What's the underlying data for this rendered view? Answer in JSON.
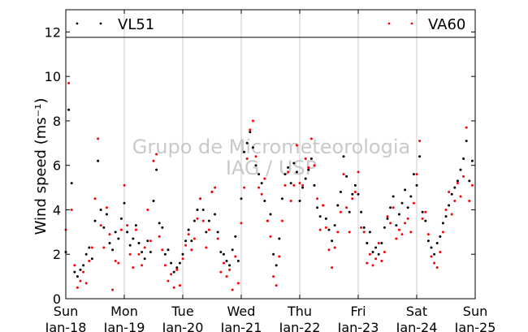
{
  "chart_data": {
    "type": "scatter",
    "ylabel": "Wind speed (ms⁻¹)",
    "ylim": [
      0,
      13
    ],
    "yticks": [
      "0",
      "2",
      "4",
      "6",
      "8",
      "10",
      "12"
    ],
    "xlim": [
      0,
      7
    ],
    "xticks": [
      {
        "day": "Sun",
        "date": "Jan-18"
      },
      {
        "day": "Mon",
        "date": "Jan-19"
      },
      {
        "day": "Tue",
        "date": "Jan-20"
      },
      {
        "day": "Wed",
        "date": "Jan-21"
      },
      {
        "day": "Thu",
        "date": "Jan-22"
      },
      {
        "day": "Fri",
        "date": "Jan-23"
      },
      {
        "day": "Sat",
        "date": "Jan-24"
      },
      {
        "day": "Sun",
        "date": "Jan-25"
      }
    ],
    "grid": "vertical",
    "legend_placement": "top",
    "watermark": [
      "Grupo de Micrometeorologia",
      "IAG / USP"
    ],
    "series": [
      {
        "name": "VL51",
        "color": "#000000",
        "marker": "dot",
        "values": [
          [
            0.0,
            2.1
          ],
          [
            0.05,
            8.5
          ],
          [
            0.1,
            5.2
          ],
          [
            0.15,
            1.2
          ],
          [
            0.2,
            1.0
          ],
          [
            0.25,
            1.3
          ],
          [
            0.3,
            1.5
          ],
          [
            0.35,
            2.0
          ],
          [
            0.4,
            2.3
          ],
          [
            0.45,
            1.8
          ],
          [
            0.5,
            3.5
          ],
          [
            0.55,
            6.2
          ],
          [
            0.6,
            4.0
          ],
          [
            0.65,
            3.2
          ],
          [
            0.7,
            3.8
          ],
          [
            0.75,
            2.5
          ],
          [
            0.8,
            2.2
          ],
          [
            0.85,
            3.0
          ],
          [
            0.9,
            2.7
          ],
          [
            0.95,
            3.6
          ],
          [
            1.0,
            4.3
          ],
          [
            1.05,
            3.0
          ],
          [
            1.1,
            2.4
          ],
          [
            1.15,
            2.7
          ],
          [
            1.2,
            3.3
          ],
          [
            1.25,
            2.5
          ],
          [
            1.3,
            2.1
          ],
          [
            1.35,
            1.8
          ],
          [
            1.4,
            2.6
          ],
          [
            1.45,
            2.1
          ],
          [
            1.5,
            4.4
          ],
          [
            1.55,
            5.8
          ],
          [
            1.6,
            3.4
          ],
          [
            1.65,
            3.2
          ],
          [
            1.7,
            2.0
          ],
          [
            1.75,
            2.2
          ],
          [
            1.8,
            1.6
          ],
          [
            1.85,
            1.2
          ],
          [
            1.9,
            1.4
          ],
          [
            1.95,
            1.6
          ],
          [
            2.0,
            2.0
          ],
          [
            2.05,
            2.6
          ],
          [
            2.1,
            3.1
          ],
          [
            2.15,
            2.6
          ],
          [
            2.2,
            3.5
          ],
          [
            2.25,
            4.0
          ],
          [
            2.3,
            4.5
          ],
          [
            2.35,
            4.0
          ],
          [
            2.4,
            3.0
          ],
          [
            2.45,
            3.5
          ],
          [
            2.5,
            4.8
          ],
          [
            2.55,
            3.8
          ],
          [
            2.6,
            3.0
          ],
          [
            2.65,
            2.1
          ],
          [
            2.7,
            2.0
          ],
          [
            2.75,
            1.7
          ],
          [
            2.8,
            1.5
          ],
          [
            2.85,
            2.2
          ],
          [
            2.9,
            2.8
          ],
          [
            2.95,
            1.7
          ],
          [
            3.0,
            4.5
          ],
          [
            3.05,
            6.6
          ],
          [
            3.1,
            7.0
          ],
          [
            3.15,
            7.5
          ],
          [
            3.2,
            6.8
          ],
          [
            3.25,
            6.0
          ],
          [
            3.3,
            5.6
          ],
          [
            3.35,
            5.2
          ],
          [
            3.4,
            4.4
          ],
          [
            3.45,
            3.5
          ],
          [
            3.5,
            3.8
          ],
          [
            3.55,
            2.0
          ],
          [
            3.6,
            1.5
          ],
          [
            3.65,
            2.7
          ],
          [
            3.7,
            4.5
          ],
          [
            3.75,
            5.6
          ],
          [
            3.8,
            5.9
          ],
          [
            3.85,
            5.2
          ],
          [
            3.9,
            6.1
          ],
          [
            3.95,
            5.7
          ],
          [
            4.0,
            4.4
          ],
          [
            4.05,
            5.0
          ],
          [
            4.1,
            5.4
          ],
          [
            4.15,
            5.8
          ],
          [
            4.2,
            6.3
          ],
          [
            4.25,
            5.1
          ],
          [
            4.3,
            4.1
          ],
          [
            4.35,
            3.7
          ],
          [
            4.4,
            4.2
          ],
          [
            4.45,
            3.6
          ],
          [
            4.5,
            3.1
          ],
          [
            4.55,
            2.6
          ],
          [
            4.6,
            3.3
          ],
          [
            4.65,
            4.2
          ],
          [
            4.7,
            4.8
          ],
          [
            4.75,
            6.4
          ],
          [
            4.8,
            5.5
          ],
          [
            4.85,
            3.9
          ],
          [
            4.9,
            4.7
          ],
          [
            4.95,
            5.1
          ],
          [
            5.0,
            4.7
          ],
          [
            5.05,
            3.9
          ],
          [
            5.1,
            3.2
          ],
          [
            5.15,
            2.5
          ],
          [
            5.2,
            3.0
          ],
          [
            5.25,
            2.1
          ],
          [
            5.3,
            2.3
          ],
          [
            5.35,
            2.0
          ],
          [
            5.4,
            2.5
          ],
          [
            5.45,
            3.2
          ],
          [
            5.5,
            3.6
          ],
          [
            5.55,
            4.1
          ],
          [
            5.6,
            4.6
          ],
          [
            5.65,
            3.3
          ],
          [
            5.7,
            3.8
          ],
          [
            5.75,
            4.3
          ],
          [
            5.8,
            4.9
          ],
          [
            5.85,
            4.1
          ],
          [
            5.9,
            4.6
          ],
          [
            5.95,
            5.6
          ],
          [
            6.0,
            5.1
          ],
          [
            6.05,
            6.4
          ],
          [
            6.1,
            3.9
          ],
          [
            6.15,
            3.5
          ],
          [
            6.2,
            2.6
          ],
          [
            6.25,
            2.3
          ],
          [
            6.3,
            2.0
          ],
          [
            6.35,
            2.5
          ],
          [
            6.4,
            2.8
          ],
          [
            6.45,
            3.4
          ],
          [
            6.5,
            3.7
          ],
          [
            6.55,
            4.2
          ],
          [
            6.6,
            4.7
          ],
          [
            6.65,
            5.0
          ],
          [
            6.7,
            5.3
          ],
          [
            6.75,
            5.8
          ],
          [
            6.8,
            6.3
          ],
          [
            6.85,
            7.1
          ],
          [
            6.9,
            5.3
          ],
          [
            6.95,
            6.2
          ]
        ]
      },
      {
        "name": "VA60",
        "color": "#ff0000",
        "marker": "dot",
        "values": [
          [
            0.0,
            3.1
          ],
          [
            0.05,
            9.7
          ],
          [
            0.1,
            4.0
          ],
          [
            0.15,
            1.5
          ],
          [
            0.2,
            0.5
          ],
          [
            0.25,
            0.8
          ],
          [
            0.3,
            1.2
          ],
          [
            0.35,
            0.7
          ],
          [
            0.4,
            1.7
          ],
          [
            0.45,
            2.3
          ],
          [
            0.5,
            4.5
          ],
          [
            0.55,
            7.2
          ],
          [
            0.6,
            3.3
          ],
          [
            0.65,
            2.3
          ],
          [
            0.7,
            4.1
          ],
          [
            0.75,
            2.9
          ],
          [
            0.8,
            0.4
          ],
          [
            0.85,
            1.7
          ],
          [
            0.9,
            1.6
          ],
          [
            0.95,
            3.1
          ],
          [
            1.0,
            5.1
          ],
          [
            1.05,
            3.3
          ],
          [
            1.1,
            2.0
          ],
          [
            1.15,
            1.4
          ],
          [
            1.2,
            3.1
          ],
          [
            1.25,
            2.0
          ],
          [
            1.3,
            1.5
          ],
          [
            1.35,
            2.3
          ],
          [
            1.4,
            4.0
          ],
          [
            1.45,
            2.6
          ],
          [
            1.5,
            6.2
          ],
          [
            1.55,
            6.5
          ],
          [
            1.6,
            2.8
          ],
          [
            1.65,
            2.2
          ],
          [
            1.7,
            1.5
          ],
          [
            1.75,
            0.8
          ],
          [
            1.8,
            1.1
          ],
          [
            1.85,
            0.5
          ],
          [
            1.9,
            1.3
          ],
          [
            1.95,
            0.6
          ],
          [
            2.0,
            1.8
          ],
          [
            2.05,
            2.4
          ],
          [
            2.1,
            2.9
          ],
          [
            2.15,
            2.2
          ],
          [
            2.2,
            2.7
          ],
          [
            2.25,
            3.6
          ],
          [
            2.3,
            4.5
          ],
          [
            2.35,
            3.5
          ],
          [
            2.4,
            2.3
          ],
          [
            2.45,
            3.1
          ],
          [
            2.5,
            4.8
          ],
          [
            2.55,
            5.0
          ],
          [
            2.6,
            2.7
          ],
          [
            2.65,
            1.2
          ],
          [
            2.7,
            1.6
          ],
          [
            2.75,
            1.0
          ],
          [
            2.8,
            1.3
          ],
          [
            2.85,
            0.4
          ],
          [
            2.9,
            1.9
          ],
          [
            2.95,
            0.7
          ],
          [
            3.0,
            3.4
          ],
          [
            3.05,
            5.0
          ],
          [
            3.1,
            6.3
          ],
          [
            3.15,
            7.6
          ],
          [
            3.2,
            8.0
          ],
          [
            3.25,
            6.4
          ],
          [
            3.3,
            5.0
          ],
          [
            3.35,
            4.7
          ],
          [
            3.4,
            5.4
          ],
          [
            3.45,
            3.5
          ],
          [
            3.5,
            2.8
          ],
          [
            3.55,
            1.0
          ],
          [
            3.6,
            0.6
          ],
          [
            3.65,
            1.9
          ],
          [
            3.7,
            3.5
          ],
          [
            3.75,
            5.1
          ],
          [
            3.8,
            5.7
          ],
          [
            3.85,
            4.4
          ],
          [
            3.9,
            5.1
          ],
          [
            3.95,
            6.9
          ],
          [
            4.0,
            5.2
          ],
          [
            4.05,
            5.1
          ],
          [
            4.1,
            6.3
          ],
          [
            4.15,
            5.9
          ],
          [
            4.2,
            7.2
          ],
          [
            4.25,
            6.0
          ],
          [
            4.3,
            4.5
          ],
          [
            4.35,
            3.1
          ],
          [
            4.4,
            4.2
          ],
          [
            4.45,
            3.2
          ],
          [
            4.5,
            2.2
          ],
          [
            4.55,
            1.4
          ],
          [
            4.6,
            2.3
          ],
          [
            4.65,
            3.0
          ],
          [
            4.7,
            3.9
          ],
          [
            4.75,
            5.6
          ],
          [
            4.8,
            4.1
          ],
          [
            4.85,
            3.0
          ],
          [
            4.9,
            4.5
          ],
          [
            4.95,
            4.8
          ],
          [
            5.0,
            5.7
          ],
          [
            5.05,
            3.2
          ],
          [
            5.1,
            3.0
          ],
          [
            5.15,
            1.6
          ],
          [
            5.2,
            2.0
          ],
          [
            5.25,
            1.5
          ],
          [
            5.3,
            1.8
          ],
          [
            5.35,
            2.5
          ],
          [
            5.4,
            1.7
          ],
          [
            5.45,
            2.1
          ],
          [
            5.5,
            3.7
          ],
          [
            5.55,
            3.4
          ],
          [
            5.6,
            4.1
          ],
          [
            5.65,
            2.7
          ],
          [
            5.7,
            3.1
          ],
          [
            5.75,
            2.9
          ],
          [
            5.8,
            3.4
          ],
          [
            5.85,
            3.6
          ],
          [
            5.9,
            3.0
          ],
          [
            5.95,
            4.3
          ],
          [
            6.0,
            5.6
          ],
          [
            6.05,
            7.1
          ],
          [
            6.1,
            3.6
          ],
          [
            6.15,
            3.9
          ],
          [
            6.2,
            2.9
          ],
          [
            6.25,
            1.9
          ],
          [
            6.3,
            1.6
          ],
          [
            6.35,
            1.4
          ],
          [
            6.4,
            2.1
          ],
          [
            6.45,
            3.0
          ],
          [
            6.5,
            4.0
          ],
          [
            6.55,
            4.8
          ],
          [
            6.6,
            3.8
          ],
          [
            6.65,
            4.4
          ],
          [
            6.7,
            5.2
          ],
          [
            6.75,
            4.6
          ],
          [
            6.8,
            5.5
          ],
          [
            6.85,
            7.7
          ],
          [
            6.9,
            4.4
          ],
          [
            6.95,
            5.1
          ]
        ]
      }
    ]
  }
}
